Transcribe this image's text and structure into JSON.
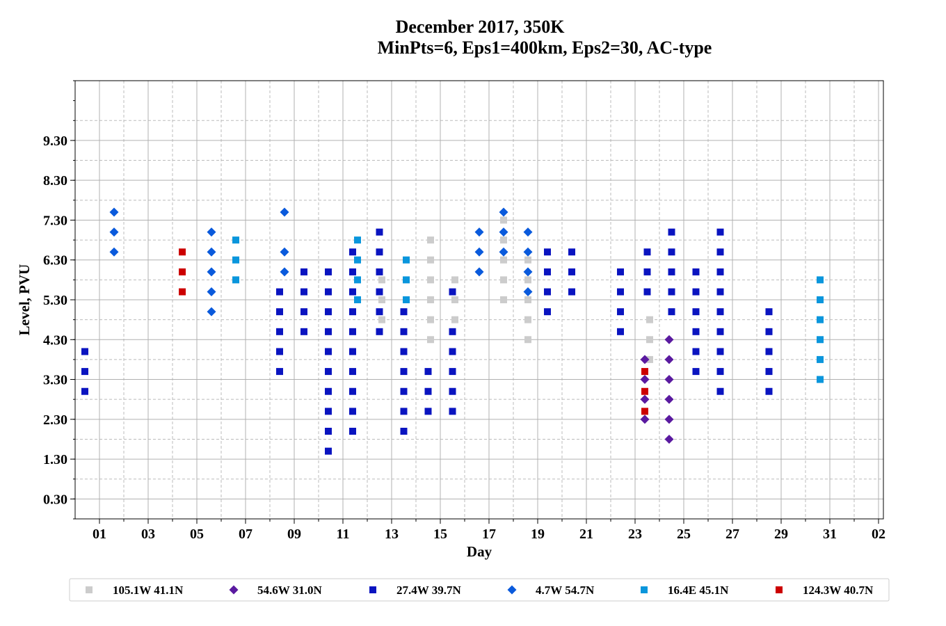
{
  "chart_data": {
    "type": "scatter",
    "title_line1": "December 2017, 350K",
    "title_line2": "MinPts=6, Eps1=400km, Eps2=30, AC-type",
    "xlabel": "Day",
    "ylabel": "Level, PVU",
    "x_ticks": [
      "01",
      "03",
      "05",
      "07",
      "09",
      "11",
      "13",
      "15",
      "17",
      "19",
      "21",
      "23",
      "25",
      "27",
      "29",
      "31",
      "02"
    ],
    "y_ticks": [
      "0.30",
      "1.30",
      "2.30",
      "3.30",
      "4.30",
      "5.30",
      "6.30",
      "7.30",
      "8.30",
      "9.30"
    ],
    "xlim": [
      0.0,
      33.2
    ],
    "ylim": [
      -0.2,
      10.8
    ],
    "grid": true,
    "legend_position": "bottom",
    "series": [
      {
        "name": "105.1W 41.1N",
        "marker": "square",
        "color": "#cccccc",
        "points": [
          [
            12.6,
            5.8
          ],
          [
            12.6,
            5.3
          ],
          [
            12.6,
            4.8
          ],
          [
            14.6,
            6.8
          ],
          [
            14.6,
            6.3
          ],
          [
            14.6,
            5.8
          ],
          [
            14.6,
            5.3
          ],
          [
            14.6,
            4.8
          ],
          [
            14.6,
            4.3
          ],
          [
            15.6,
            5.8
          ],
          [
            15.6,
            5.3
          ],
          [
            15.6,
            4.8
          ],
          [
            17.6,
            7.3
          ],
          [
            17.6,
            6.8
          ],
          [
            17.6,
            6.3
          ],
          [
            17.6,
            5.8
          ],
          [
            17.6,
            5.3
          ],
          [
            18.6,
            6.3
          ],
          [
            18.6,
            5.8
          ],
          [
            18.6,
            5.3
          ],
          [
            18.6,
            4.8
          ],
          [
            18.6,
            4.3
          ],
          [
            23.6,
            4.8
          ],
          [
            23.6,
            4.3
          ],
          [
            23.6,
            3.8
          ]
        ]
      },
      {
        "name": "54.6W 31.0N",
        "marker": "diamond",
        "color": "#5a1aa0",
        "points": [
          [
            23.4,
            3.8
          ],
          [
            23.4,
            3.3
          ],
          [
            23.4,
            2.8
          ],
          [
            23.4,
            2.3
          ],
          [
            24.4,
            4.3
          ],
          [
            24.4,
            3.8
          ],
          [
            24.4,
            3.3
          ],
          [
            24.4,
            2.8
          ],
          [
            24.4,
            2.3
          ],
          [
            24.4,
            1.8
          ]
        ]
      },
      {
        "name": "27.4W 39.7N",
        "marker": "square",
        "color": "#0a14c0",
        "points": [
          [
            0.4,
            4.0
          ],
          [
            0.4,
            3.5
          ],
          [
            0.4,
            3.0
          ],
          [
            8.4,
            5.5
          ],
          [
            8.4,
            5.0
          ],
          [
            8.4,
            4.5
          ],
          [
            8.4,
            4.0
          ],
          [
            8.4,
            3.5
          ],
          [
            9.4,
            6.0
          ],
          [
            9.4,
            5.5
          ],
          [
            9.4,
            5.0
          ],
          [
            9.4,
            4.5
          ],
          [
            10.4,
            6.0
          ],
          [
            10.4,
            5.5
          ],
          [
            10.4,
            5.0
          ],
          [
            10.4,
            4.5
          ],
          [
            10.4,
            4.0
          ],
          [
            10.4,
            3.5
          ],
          [
            10.4,
            3.0
          ],
          [
            10.4,
            2.5
          ],
          [
            10.4,
            2.0
          ],
          [
            10.4,
            1.5
          ],
          [
            11.4,
            6.5
          ],
          [
            11.4,
            6.0
          ],
          [
            11.4,
            5.5
          ],
          [
            11.4,
            5.0
          ],
          [
            11.4,
            4.5
          ],
          [
            11.4,
            4.0
          ],
          [
            11.4,
            3.5
          ],
          [
            11.4,
            3.0
          ],
          [
            11.4,
            2.5
          ],
          [
            11.4,
            2.0
          ],
          [
            12.5,
            7.0
          ],
          [
            12.5,
            6.5
          ],
          [
            12.5,
            6.0
          ],
          [
            12.5,
            5.5
          ],
          [
            12.5,
            5.0
          ],
          [
            12.5,
            4.5
          ],
          [
            13.5,
            5.0
          ],
          [
            13.5,
            4.5
          ],
          [
            13.5,
            4.0
          ],
          [
            13.5,
            3.5
          ],
          [
            13.5,
            3.0
          ],
          [
            13.5,
            2.5
          ],
          [
            13.5,
            2.0
          ],
          [
            14.5,
            3.5
          ],
          [
            14.5,
            3.0
          ],
          [
            14.5,
            2.5
          ],
          [
            15.5,
            5.5
          ],
          [
            15.5,
            4.5
          ],
          [
            15.5,
            4.0
          ],
          [
            15.5,
            3.5
          ],
          [
            15.5,
            3.0
          ],
          [
            15.5,
            2.5
          ],
          [
            19.4,
            6.5
          ],
          [
            19.4,
            6.0
          ],
          [
            19.4,
            5.5
          ],
          [
            19.4,
            5.0
          ],
          [
            20.4,
            6.5
          ],
          [
            20.4,
            6.0
          ],
          [
            20.4,
            5.5
          ],
          [
            22.4,
            6.0
          ],
          [
            22.4,
            5.5
          ],
          [
            22.4,
            5.0
          ],
          [
            22.4,
            4.5
          ],
          [
            23.5,
            6.5
          ],
          [
            23.5,
            6.0
          ],
          [
            23.5,
            5.5
          ],
          [
            24.5,
            7.0
          ],
          [
            24.5,
            6.5
          ],
          [
            24.5,
            6.0
          ],
          [
            24.5,
            5.5
          ],
          [
            24.5,
            5.0
          ],
          [
            25.5,
            6.0
          ],
          [
            25.5,
            5.5
          ],
          [
            25.5,
            5.0
          ],
          [
            25.5,
            4.5
          ],
          [
            25.5,
            4.0
          ],
          [
            25.5,
            3.5
          ],
          [
            26.5,
            7.0
          ],
          [
            26.5,
            6.5
          ],
          [
            26.5,
            6.0
          ],
          [
            26.5,
            5.5
          ],
          [
            26.5,
            5.0
          ],
          [
            26.5,
            4.5
          ],
          [
            26.5,
            4.0
          ],
          [
            26.5,
            3.5
          ],
          [
            26.5,
            3.0
          ],
          [
            28.5,
            5.0
          ],
          [
            28.5,
            4.5
          ],
          [
            28.5,
            4.0
          ],
          [
            28.5,
            3.5
          ],
          [
            28.5,
            3.0
          ]
        ]
      },
      {
        "name": "4.7W 54.7N",
        "marker": "diamond",
        "color": "#0a5adc",
        "points": [
          [
            1.6,
            7.5
          ],
          [
            1.6,
            7.0
          ],
          [
            1.6,
            6.5
          ],
          [
            5.6,
            7.0
          ],
          [
            5.6,
            6.5
          ],
          [
            5.6,
            6.0
          ],
          [
            5.6,
            5.5
          ],
          [
            5.6,
            5.0
          ],
          [
            8.6,
            7.5
          ],
          [
            8.6,
            6.5
          ],
          [
            8.6,
            6.0
          ],
          [
            16.6,
            7.0
          ],
          [
            16.6,
            6.5
          ],
          [
            16.6,
            6.0
          ],
          [
            17.6,
            7.5
          ],
          [
            17.6,
            7.0
          ],
          [
            17.6,
            6.5
          ],
          [
            18.6,
            7.0
          ],
          [
            18.6,
            6.5
          ],
          [
            18.6,
            6.0
          ],
          [
            18.6,
            5.5
          ]
        ]
      },
      {
        "name": "16.4E 45.1N",
        "marker": "square",
        "color": "#0a96dc",
        "points": [
          [
            6.6,
            6.8
          ],
          [
            6.6,
            6.3
          ],
          [
            6.6,
            5.8
          ],
          [
            11.6,
            6.8
          ],
          [
            11.6,
            6.3
          ],
          [
            11.6,
            5.8
          ],
          [
            11.6,
            5.3
          ],
          [
            13.6,
            6.3
          ],
          [
            13.6,
            5.8
          ],
          [
            13.6,
            5.3
          ],
          [
            30.6,
            5.8
          ],
          [
            30.6,
            5.3
          ],
          [
            30.6,
            4.8
          ],
          [
            30.6,
            4.3
          ],
          [
            30.6,
            3.8
          ],
          [
            30.6,
            3.3
          ]
        ]
      },
      {
        "name": "124.3W 40.7N",
        "marker": "square",
        "color": "#cc0000",
        "points": [
          [
            4.4,
            6.5
          ],
          [
            4.4,
            6.0
          ],
          [
            4.4,
            5.5
          ],
          [
            23.4,
            3.5
          ],
          [
            23.4,
            3.0
          ],
          [
            23.4,
            2.5
          ]
        ]
      }
    ]
  }
}
